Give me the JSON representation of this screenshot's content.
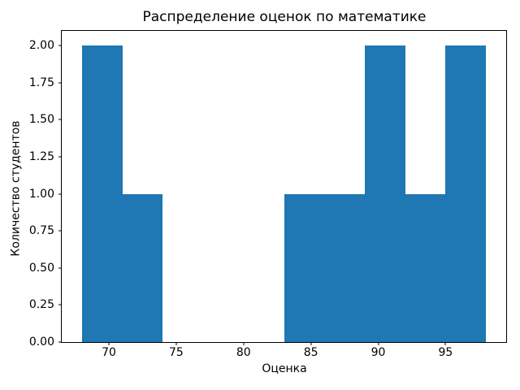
{
  "colors": {
    "bar": "#1f77b4",
    "spine": "#000000",
    "background": "#ffffff",
    "text": "#000000"
  },
  "chart_data": {
    "type": "bar",
    "subtype": "histogram",
    "title": "Распределение оценок по математике",
    "xlabel": "Оценка",
    "ylabel": "Количество студентов",
    "bin_edges": [
      68,
      71,
      74,
      77,
      80,
      83,
      86,
      89,
      92,
      95,
      98
    ],
    "counts": [
      2,
      1,
      0,
      0,
      0,
      1,
      1,
      2,
      1,
      2
    ],
    "xlim": [
      66.5,
      99.5
    ],
    "ylim": [
      0,
      2.1
    ],
    "xticks": [
      70,
      75,
      80,
      85,
      90,
      95
    ],
    "xtick_labels": [
      "70",
      "75",
      "80",
      "85",
      "90",
      "95"
    ],
    "ytick_values": [
      0,
      0.25,
      0.5,
      0.75,
      1,
      1.25,
      1.5,
      1.75,
      2
    ],
    "ytick_labels": [
      "0.00",
      "0.25",
      "0.50",
      "0.75",
      "1.00",
      "1.25",
      "1.50",
      "1.75",
      "2.00"
    ],
    "grid": false,
    "legend": null
  }
}
